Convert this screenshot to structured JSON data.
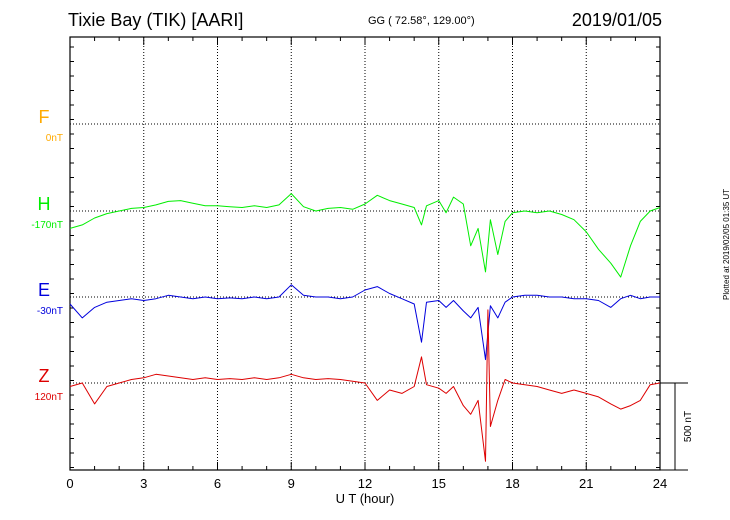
{
  "header": {
    "station": "Tixie Bay (TIK)  [AARI]",
    "coords": "GG ( 72.58°, 129.00°)",
    "date": "2019/01/05"
  },
  "footer_note": "Plotted at 2019/02/05 01:35 UT",
  "colors": {
    "F": "#ffaa00",
    "H": "#00ee00",
    "E": "#0000dd",
    "Z": "#dd0000",
    "grid": "#000000",
    "frame": "#000000"
  },
  "chart_data": {
    "type": "line",
    "xlabel": "U T (hour)",
    "xlim": [
      0,
      24
    ],
    "xticks": [
      "0",
      "3",
      "6",
      "9",
      "12",
      "15",
      "18",
      "21",
      "24"
    ],
    "scale_label": "500 nT",
    "scale_nT": 500,
    "grid": true,
    "series": [
      {
        "name": "F",
        "baseline": "0nT",
        "x": [],
        "y": []
      },
      {
        "name": "H",
        "baseline": "-170nT",
        "x": [
          0,
          0.5,
          1.0,
          1.5,
          2.0,
          2.5,
          3.0,
          3.5,
          4.0,
          4.5,
          5.0,
          5.5,
          6.0,
          6.5,
          7.0,
          7.5,
          8.0,
          8.5,
          9.0,
          9.5,
          10.0,
          10.5,
          11.0,
          11.5,
          12.0,
          12.5,
          13.0,
          13.5,
          14.0,
          14.3,
          14.5,
          15.0,
          15.3,
          15.6,
          16.0,
          16.3,
          16.6,
          16.9,
          17.1,
          17.4,
          17.7,
          18.0,
          18.5,
          19.0,
          19.5,
          20.0,
          20.5,
          21.0,
          21.5,
          22.0,
          22.4,
          22.8,
          23.2,
          23.6,
          24.0
        ],
        "y": [
          -100,
          -80,
          -40,
          -15,
          0,
          15,
          20,
          35,
          55,
          60,
          45,
          30,
          30,
          25,
          20,
          30,
          20,
          35,
          100,
          25,
          0,
          15,
          20,
          10,
          40,
          90,
          60,
          40,
          20,
          -80,
          30,
          60,
          -10,
          80,
          40,
          -200,
          -100,
          -350,
          -50,
          -250,
          -60,
          -10,
          0,
          -10,
          0,
          -20,
          -50,
          -120,
          -220,
          -300,
          -380,
          -200,
          -60,
          0,
          20
        ]
      },
      {
        "name": "E",
        "baseline": "-30nT",
        "x": [
          0,
          0.5,
          1.0,
          1.5,
          2.0,
          2.5,
          3.0,
          3.5,
          4.0,
          4.5,
          5.0,
          5.5,
          6.0,
          6.5,
          7.0,
          7.5,
          8.0,
          8.5,
          9.0,
          9.5,
          10.0,
          10.5,
          11.0,
          11.5,
          12.0,
          12.5,
          13.0,
          13.5,
          14.0,
          14.3,
          14.5,
          15.0,
          15.3,
          15.6,
          16.0,
          16.3,
          16.6,
          16.9,
          17.1,
          17.4,
          17.7,
          18.0,
          18.5,
          19.0,
          19.5,
          20.0,
          20.5,
          21.0,
          21.5,
          22.0,
          22.4,
          22.8,
          23.2,
          23.6,
          24.0
        ],
        "y": [
          -40,
          -120,
          -60,
          -30,
          -20,
          -10,
          -20,
          -10,
          10,
          0,
          -10,
          0,
          -10,
          -5,
          -10,
          0,
          -10,
          0,
          70,
          10,
          0,
          0,
          -10,
          0,
          40,
          60,
          20,
          -10,
          -40,
          -260,
          -30,
          -20,
          -60,
          -20,
          -80,
          -120,
          -60,
          -360,
          -50,
          -120,
          -30,
          0,
          10,
          10,
          0,
          0,
          -10,
          -10,
          -20,
          -60,
          -10,
          10,
          -10,
          0,
          0
        ]
      },
      {
        "name": "Z",
        "baseline": "120nT",
        "x": [
          0,
          0.5,
          1.0,
          1.5,
          2.0,
          2.5,
          3.0,
          3.5,
          4.0,
          4.5,
          5.0,
          5.5,
          6.0,
          6.5,
          7.0,
          7.5,
          8.0,
          8.5,
          9.0,
          9.5,
          10.0,
          10.5,
          11.0,
          11.5,
          12.0,
          12.5,
          13.0,
          13.5,
          14.0,
          14.3,
          14.5,
          15.0,
          15.3,
          15.6,
          16.0,
          16.3,
          16.6,
          16.9,
          17.0,
          17.1,
          17.4,
          17.7,
          18.0,
          18.5,
          19.0,
          19.5,
          20.0,
          20.5,
          21.0,
          21.5,
          22.0,
          22.4,
          22.8,
          23.2,
          23.6,
          24.0
        ],
        "y": [
          -20,
          0,
          -120,
          -20,
          0,
          20,
          30,
          50,
          40,
          30,
          20,
          30,
          20,
          25,
          20,
          30,
          20,
          30,
          50,
          30,
          20,
          25,
          20,
          10,
          0,
          -100,
          -40,
          -60,
          -20,
          150,
          -10,
          -30,
          -60,
          -20,
          -130,
          -180,
          -100,
          -450,
          420,
          -250,
          -100,
          20,
          0,
          -10,
          -20,
          -40,
          -60,
          -40,
          -60,
          -80,
          -120,
          -150,
          -130,
          -100,
          -10,
          0
        ]
      }
    ]
  }
}
